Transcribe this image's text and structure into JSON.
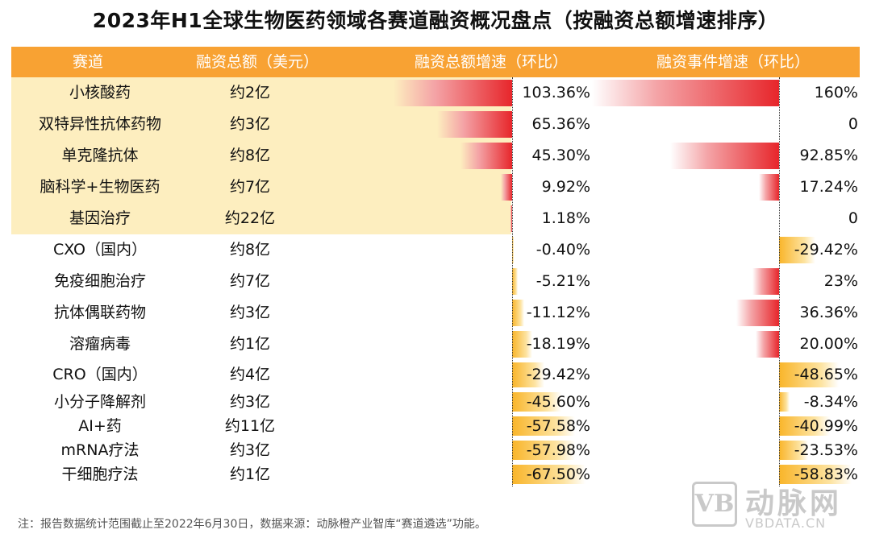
{
  "title": "2023年H1全球生物医药领域各赛道融资概况盘点（按融资总额增速排序）",
  "headers": {
    "track": "赛道",
    "amount": "融资总额（美元）",
    "amount_growth": "融资总额增速（环比）",
    "event_growth": "融资事件增速（环比）"
  },
  "colors": {
    "header": "#f8a233",
    "highlight": "#fdeebf",
    "positive": "#e7262b",
    "negative": "#f9b52a"
  },
  "chart_data": {
    "type": "table",
    "columns": [
      "赛道",
      "融资总额（美元）",
      "融资总额增速（环比）",
      "融资事件增速（环比）"
    ],
    "rows": [
      {
        "track": "小核酸药",
        "amount": "约2亿",
        "amount_growth": 103.36,
        "amount_growth_label": "103.36%",
        "event_growth": 160,
        "event_growth_label": "160%"
      },
      {
        "track": "双特异性抗体药物",
        "amount": "约3亿",
        "amount_growth": 65.36,
        "amount_growth_label": "65.36%",
        "event_growth": 0,
        "event_growth_label": "0"
      },
      {
        "track": "单克隆抗体",
        "amount": "约8亿",
        "amount_growth": 45.3,
        "amount_growth_label": "45.30%",
        "event_growth": 92.85,
        "event_growth_label": "92.85%"
      },
      {
        "track": "脑科学+生物医药",
        "amount": "约7亿",
        "amount_growth": 9.92,
        "amount_growth_label": "9.92%",
        "event_growth": 17.24,
        "event_growth_label": "17.24%"
      },
      {
        "track": "基因治疗",
        "amount": "约22亿",
        "amount_growth": 1.18,
        "amount_growth_label": "1.18%",
        "event_growth": 0,
        "event_growth_label": "0"
      },
      {
        "track": "CXO（国内）",
        "amount": "约8亿",
        "amount_growth": -0.4,
        "amount_growth_label": "-0.40%",
        "event_growth": -29.42,
        "event_growth_label": "-29.42%"
      },
      {
        "track": "免疫细胞治疗",
        "amount": "约7亿",
        "amount_growth": -5.21,
        "amount_growth_label": "-5.21%",
        "event_growth": 23,
        "event_growth_label": "23%"
      },
      {
        "track": "抗体偶联药物",
        "amount": "约3亿",
        "amount_growth": -11.12,
        "amount_growth_label": "-11.12%",
        "event_growth": 36.36,
        "event_growth_label": "36.36%"
      },
      {
        "track": "溶瘤病毒",
        "amount": "约1亿",
        "amount_growth": -18.19,
        "amount_growth_label": "-18.19%",
        "event_growth": 20.0,
        "event_growth_label": "20.00%"
      },
      {
        "track": "CRO（国内）",
        "amount": "约4亿",
        "amount_growth": -29.42,
        "amount_growth_label": "-29.42%",
        "event_growth": -48.65,
        "event_growth_label": "-48.65%"
      },
      {
        "track": "小分子降解剂",
        "amount": "约3亿",
        "amount_growth": -45.6,
        "amount_growth_label": "-45.60%",
        "event_growth": -8.34,
        "event_growth_label": "-8.34%"
      },
      {
        "track": "AI+药",
        "amount": "约11亿",
        "amount_growth": -57.58,
        "amount_growth_label": "-57.58%",
        "event_growth": -40.99,
        "event_growth_label": "-40.99%"
      },
      {
        "track": "mRNA疗法",
        "amount": "约3亿",
        "amount_growth": -57.98,
        "amount_growth_label": "-57.98%",
        "event_growth": -23.53,
        "event_growth_label": "-23.53%"
      },
      {
        "track": "干细胞疗法",
        "amount": "约1亿",
        "amount_growth": -67.5,
        "amount_growth_label": "-67.50%",
        "event_growth": -58.83,
        "event_growth_label": "-58.83%"
      }
    ],
    "highlighted_rows": 5
  },
  "footnote": "注：报告数据统计范围截止至2022年6月30日，数据来源：动脉橙产业智库“赛道遴选”功能。",
  "watermark": {
    "mark": "VB",
    "cn": "动脉网",
    "en": "VBDATA.CN"
  }
}
